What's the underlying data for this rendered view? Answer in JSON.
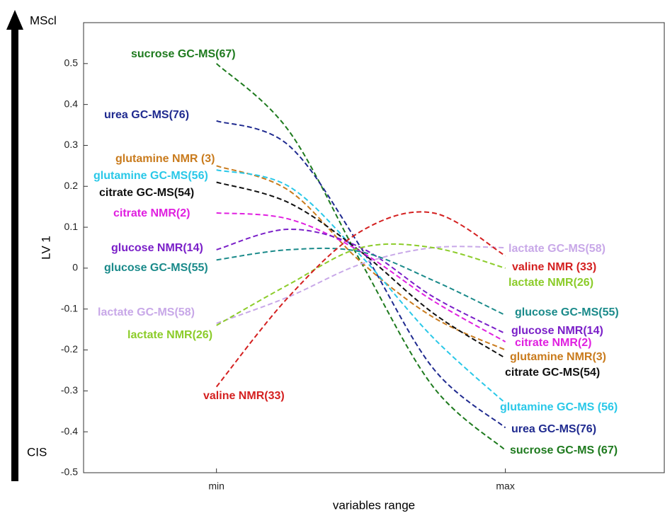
{
  "chart_data": {
    "type": "line",
    "y_label": "LV 1",
    "x_label": "variables range",
    "top_annotation": "MScl",
    "bottom_annotation": "CIS",
    "x": [
      0,
      0.25,
      0.5,
      0.75,
      1
    ],
    "xlim": [
      -0.46,
      1.55
    ],
    "xticks": [
      {
        "value": 0,
        "label": "min"
      },
      {
        "value": 1,
        "label": "max"
      }
    ],
    "ylim": [
      -0.5,
      0.6
    ],
    "yticks": [
      -0.5,
      -0.4,
      -0.3,
      -0.2,
      -0.1,
      0,
      0.1,
      0.2,
      0.3,
      0.4,
      0.5
    ],
    "series": [
      {
        "name": "sucrose GC-MS(67)",
        "end_label": "sucrose GC-MS (67)",
        "color": "#1e7a1e",
        "values": [
          0.5,
          0.336,
          0.015,
          -0.29,
          -0.445
        ]
      },
      {
        "name": "urea GC-MS(76)",
        "end_label": "urea GC-MS(76)",
        "color": "#1f2a8f",
        "values": [
          0.36,
          0.3,
          0.05,
          -0.245,
          -0.39
        ]
      },
      {
        "name": "glutamine NMR (3)",
        "end_label": "glutamine NMR(3)",
        "color": "#c97b1d",
        "values": [
          0.25,
          0.19,
          0.015,
          -0.12,
          -0.2
        ]
      },
      {
        "name": "glutamine GC-MS(56)",
        "end_label": "glutamine GC-MS (56)",
        "color": "#29c8e8",
        "values": [
          0.24,
          0.2,
          0.03,
          -0.17,
          -0.33
        ]
      },
      {
        "name": "citrate GC-MS(54)",
        "end_label": "citrate GC-MS(54)",
        "color": "#111111",
        "values": [
          0.21,
          0.16,
          0.04,
          -0.11,
          -0.22
        ]
      },
      {
        "name": "citrate NMR(2)",
        "end_label": "citrate NMR(2)",
        "color": "#e020e0",
        "values": [
          0.135,
          0.12,
          0.04,
          -0.08,
          -0.18
        ]
      },
      {
        "name": "glucose NMR(14)",
        "end_label": "glucose NMR(14)",
        "color": "#7a1fc8",
        "values": [
          0.045,
          0.095,
          0.05,
          -0.07,
          -0.16
        ]
      },
      {
        "name": "glucose GC-MS(55)",
        "end_label": "glucose GC-MS(55)",
        "color": "#1a8a8a",
        "values": [
          0.02,
          0.045,
          0.04,
          -0.03,
          -0.115
        ]
      },
      {
        "name": "lactate GC-MS(58)",
        "end_label": "lactate GC-MS(58)",
        "color": "#c8a8e8",
        "values": [
          -0.135,
          -0.07,
          0.01,
          0.05,
          0.05
        ]
      },
      {
        "name": "lactate NMR(26)",
        "end_label": "lactate NMR(26)",
        "color": "#8ccc2a",
        "values": [
          -0.14,
          -0.04,
          0.05,
          0.05,
          0
        ]
      },
      {
        "name": "valine NMR(33)",
        "end_label": "valine NMR (33)",
        "color": "#d42020",
        "values": [
          -0.29,
          -0.07,
          0.09,
          0.135,
          0.03
        ]
      }
    ]
  }
}
